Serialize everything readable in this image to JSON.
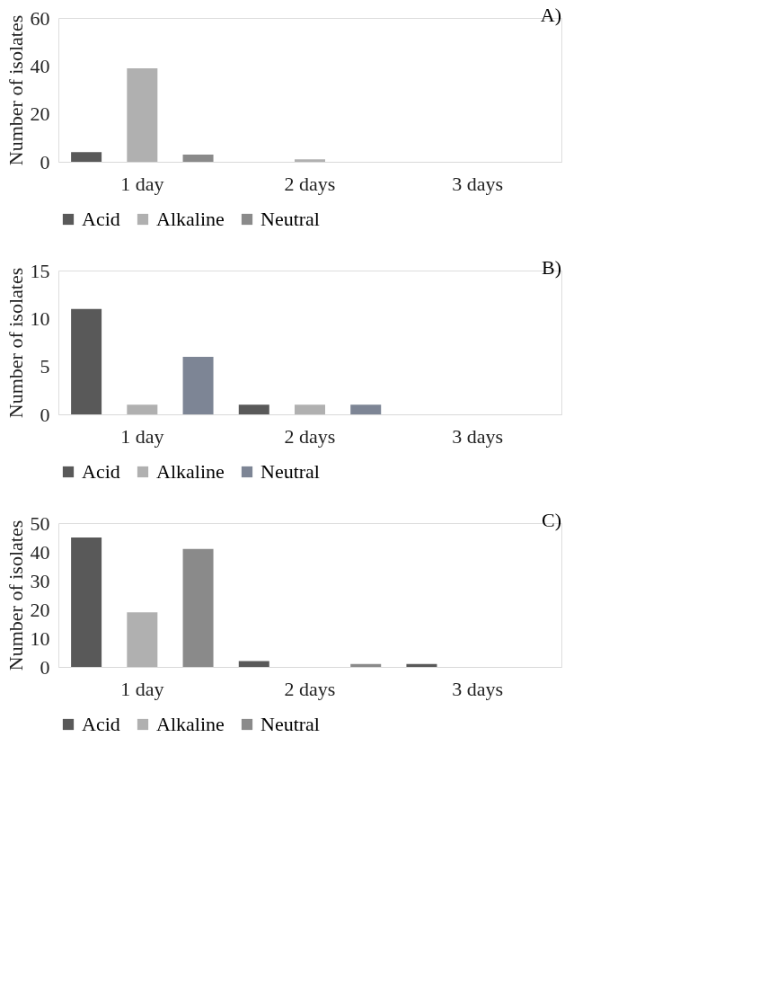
{
  "chart_data": [
    {
      "type": "bar",
      "title": "A)",
      "ylabel": "Number of isolates",
      "categories": [
        "1 day",
        "2 days",
        "3 days"
      ],
      "ylim": [
        0,
        60
      ],
      "yticks": [
        0,
        20,
        40,
        60
      ],
      "grid": false,
      "legend": "bottom",
      "series": [
        {
          "name": "Acid",
          "color": "#595959",
          "values": [
            4,
            0,
            0
          ]
        },
        {
          "name": "Alkaline",
          "color": "#b0b0b0",
          "values": [
            39,
            1,
            0
          ]
        },
        {
          "name": "Neutral",
          "color": "#8a8a8a",
          "values": [
            3,
            0,
            0
          ]
        }
      ]
    },
    {
      "type": "bar",
      "title": "B)",
      "ylabel": "Number of isolates",
      "categories": [
        "1 day",
        "2 days",
        "3 days"
      ],
      "ylim": [
        0,
        15
      ],
      "yticks": [
        0,
        5,
        10,
        15
      ],
      "grid": false,
      "legend": "bottom",
      "series": [
        {
          "name": "Acid",
          "color": "#595959",
          "values": [
            11,
            1,
            0
          ]
        },
        {
          "name": "Alkaline",
          "color": "#b0b0b0",
          "values": [
            1,
            1,
            0
          ]
        },
        {
          "name": "Neutral",
          "color": "#7d8595",
          "values": [
            6,
            1,
            0
          ]
        }
      ]
    },
    {
      "type": "bar",
      "title": "C)",
      "ylabel": "Number of isolates",
      "categories": [
        "1 day",
        "2 days",
        "3 days"
      ],
      "ylim": [
        0,
        50
      ],
      "yticks": [
        0,
        10,
        20,
        30,
        40,
        50
      ],
      "grid": false,
      "legend": "bottom",
      "series": [
        {
          "name": "Acid",
          "color": "#595959",
          "values": [
            45,
            2,
            1
          ]
        },
        {
          "name": "Alkaline",
          "color": "#b0b0b0",
          "values": [
            19,
            0,
            0
          ]
        },
        {
          "name": "Neutral",
          "color": "#8a8a8a",
          "values": [
            41,
            1,
            0
          ]
        }
      ]
    }
  ]
}
